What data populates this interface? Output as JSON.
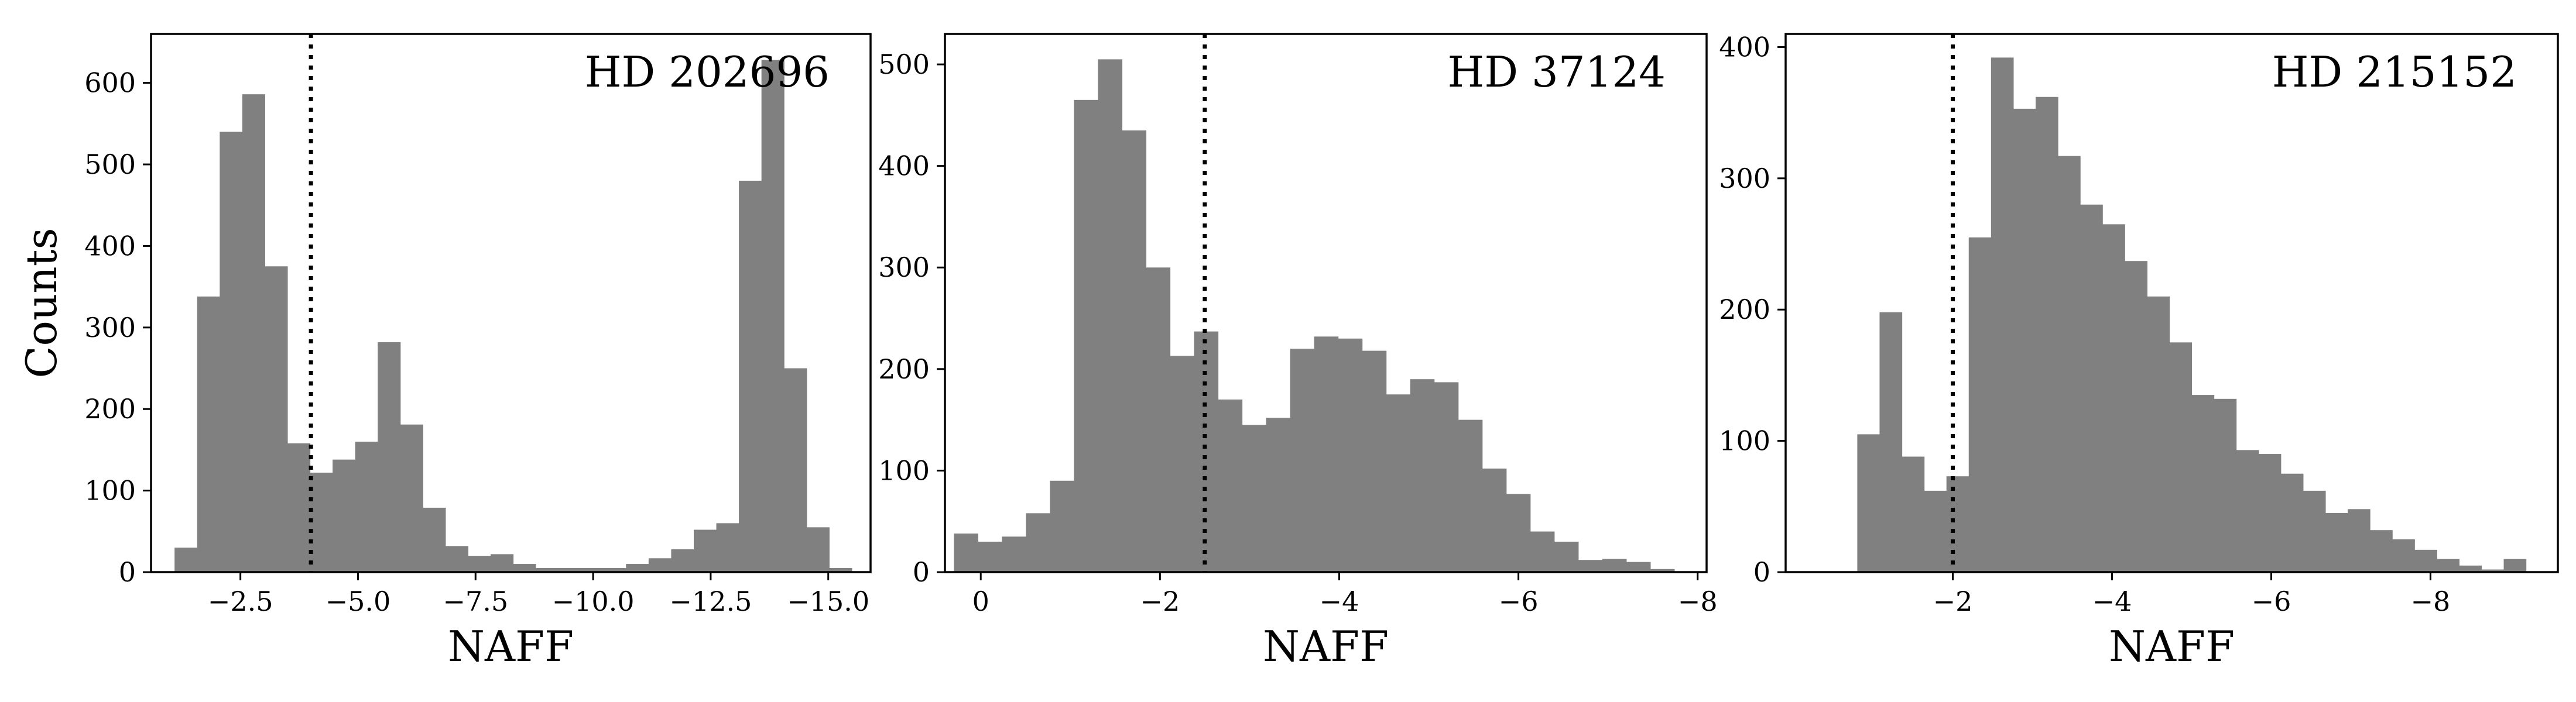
{
  "chart_data": [
    {
      "type": "bar",
      "title": "HD 202696",
      "xlabel": "NAFF",
      "ylabel": "Counts",
      "x_inverted": true,
      "xlim": [
        -0.6,
        -15.9
      ],
      "ylim": [
        0,
        660
      ],
      "xticks": [
        {
          "value": -2.5,
          "label": "−2.5"
        },
        {
          "value": -5.0,
          "label": "−5.0"
        },
        {
          "value": -7.5,
          "label": "−7.5"
        },
        {
          "value": -10.0,
          "label": "−10.0"
        },
        {
          "value": -12.5,
          "label": "−12.5"
        },
        {
          "value": -15.0,
          "label": "−15.0"
        }
      ],
      "yticks": [
        {
          "value": 0,
          "label": "0"
        },
        {
          "value": 100,
          "label": "100"
        },
        {
          "value": 200,
          "label": "200"
        },
        {
          "value": 300,
          "label": "300"
        },
        {
          "value": 400,
          "label": "400"
        },
        {
          "value": 500,
          "label": "500"
        },
        {
          "value": 600,
          "label": "600"
        }
      ],
      "vline": -4.0,
      "bin_start": -1.1,
      "bin_width": -0.48,
      "counts": [
        30,
        338,
        540,
        586,
        375,
        158,
        122,
        138,
        160,
        282,
        181,
        79,
        32,
        20,
        22,
        10,
        5,
        5,
        5,
        5,
        10,
        17,
        28,
        52,
        60,
        480,
        628,
        250,
        55,
        5
      ]
    },
    {
      "type": "bar",
      "title": "HD 37124",
      "xlabel": "NAFF",
      "ylabel": "",
      "x_inverted": true,
      "xlim": [
        0.4,
        -8.1
      ],
      "ylim": [
        0,
        530
      ],
      "xticks": [
        {
          "value": 0,
          "label": "0"
        },
        {
          "value": -2,
          "label": "−2"
        },
        {
          "value": -4,
          "label": "−4"
        },
        {
          "value": -6,
          "label": "−6"
        },
        {
          "value": -8,
          "label": "−8"
        }
      ],
      "yticks": [
        {
          "value": 0,
          "label": "0"
        },
        {
          "value": 100,
          "label": "100"
        },
        {
          "value": 200,
          "label": "200"
        },
        {
          "value": 300,
          "label": "300"
        },
        {
          "value": 400,
          "label": "400"
        },
        {
          "value": 500,
          "label": "500"
        }
      ],
      "vline": -2.5,
      "bin_start": 0.3,
      "bin_width": -0.268,
      "counts": [
        38,
        30,
        35,
        58,
        90,
        465,
        505,
        435,
        300,
        213,
        237,
        170,
        145,
        152,
        220,
        232,
        230,
        218,
        175,
        190,
        187,
        150,
        102,
        77,
        40,
        30,
        12,
        13,
        10,
        3
      ]
    },
    {
      "type": "bar",
      "title": "HD 215152",
      "xlabel": "NAFF",
      "ylabel": "",
      "x_inverted": true,
      "xlim": [
        0.1,
        -9.6
      ],
      "ylim": [
        0,
        410
      ],
      "xticks": [
        {
          "value": -2,
          "label": "−2"
        },
        {
          "value": -4,
          "label": "−4"
        },
        {
          "value": -6,
          "label": "−6"
        },
        {
          "value": -8,
          "label": "−8"
        }
      ],
      "yticks": [
        {
          "value": 0,
          "label": "0"
        },
        {
          "value": 100,
          "label": "100"
        },
        {
          "value": 200,
          "label": "200"
        },
        {
          "value": 300,
          "label": "300"
        },
        {
          "value": 400,
          "label": "400"
        }
      ],
      "vline": -2.0,
      "bin_start": -0.8,
      "bin_width": -0.28,
      "counts": [
        105,
        198,
        88,
        62,
        73,
        255,
        392,
        353,
        362,
        317,
        280,
        265,
        237,
        210,
        175,
        135,
        132,
        93,
        90,
        75,
        62,
        45,
        48,
        32,
        25,
        17,
        10,
        5,
        2,
        10
      ]
    }
  ],
  "style": {
    "bar_color": "#808080",
    "axis_color": "#000000",
    "vline_color": "#000000"
  }
}
